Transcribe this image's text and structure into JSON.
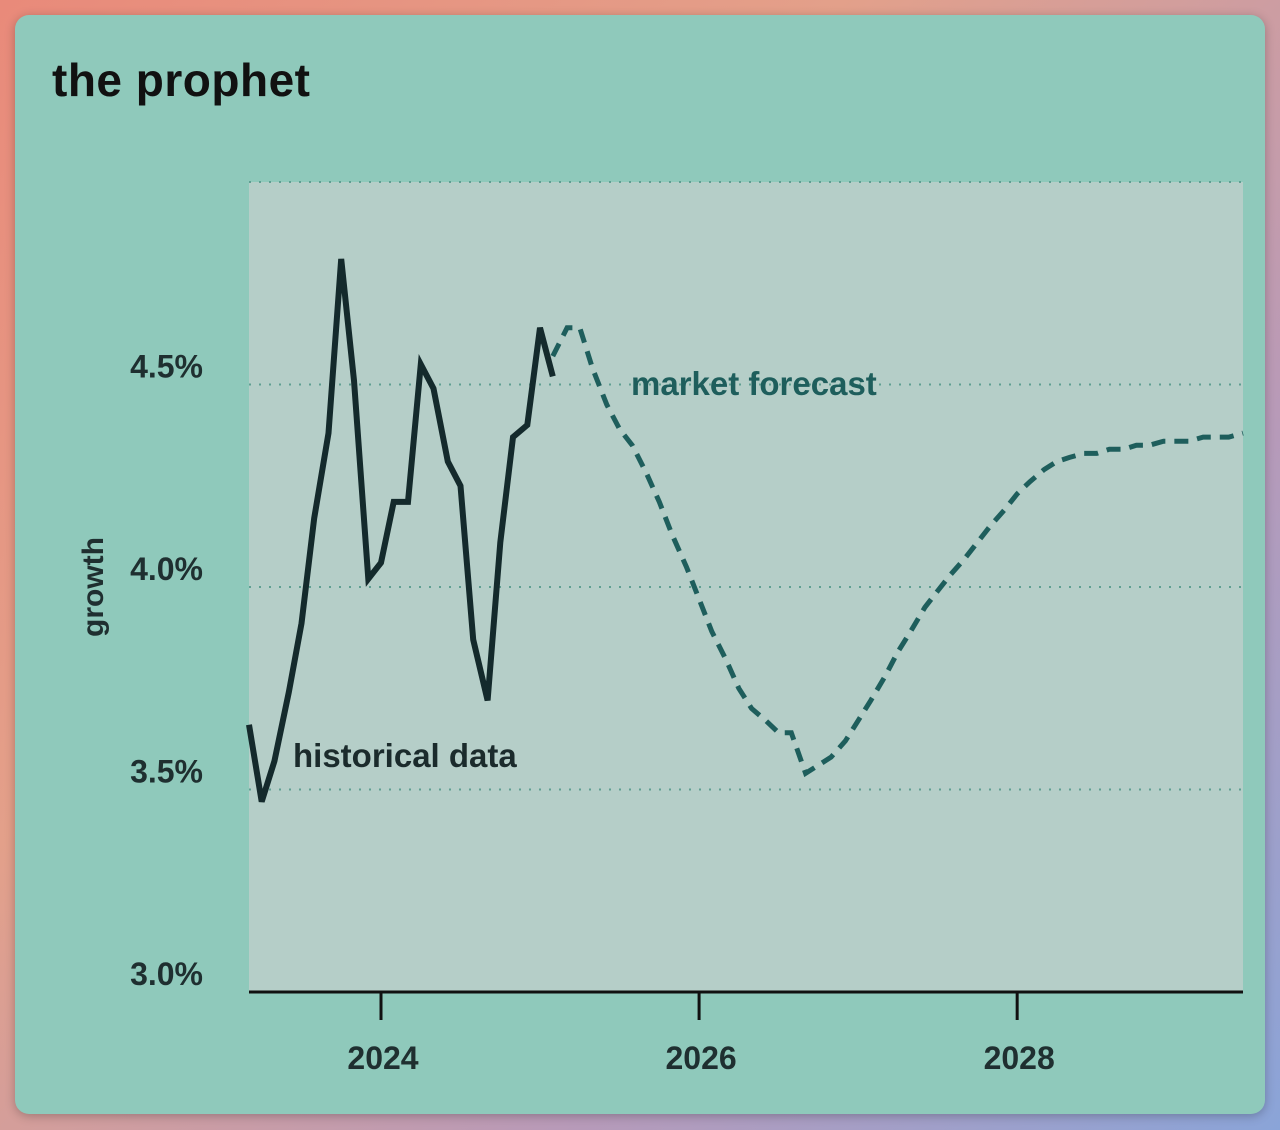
{
  "chart_data": {
    "type": "line",
    "title": "the prophet",
    "xlabel": "",
    "ylabel": "growth",
    "xlim": [
      2023.17,
      2029.42
    ],
    "ylim": [
      3.0,
      5.0
    ],
    "yticks": [
      3.0,
      3.5,
      4.0,
      4.5
    ],
    "ytick_labels": [
      "3.0%",
      "3.5%",
      "4.0%",
      "4.5%"
    ],
    "xticks": [
      2024,
      2026,
      2028
    ],
    "xtick_labels": [
      "2024",
      "2026",
      "2028"
    ],
    "grid": "horizontal dotted",
    "colors": {
      "historical": "#142a2c",
      "forecast": "#1e5e5c",
      "plot_background": "#b5cec8",
      "card_background": "#8fc9bb"
    },
    "series": [
      {
        "name": "historical data",
        "style": "solid",
        "x": [
          2023.17,
          2023.25,
          2023.33,
          2023.42,
          2023.5,
          2023.58,
          2023.67,
          2023.75,
          2023.83,
          2023.92,
          2024.0,
          2024.08,
          2024.17,
          2024.25,
          2024.33,
          2024.42,
          2024.5,
          2024.58,
          2024.67,
          2024.75,
          2024.83,
          2024.92,
          2025.0,
          2025.08
        ],
        "y": [
          3.66,
          3.47,
          3.57,
          3.74,
          3.91,
          4.17,
          4.38,
          4.81,
          4.51,
          4.02,
          4.06,
          4.21,
          4.21,
          4.55,
          4.49,
          4.31,
          4.25,
          3.87,
          3.72,
          4.11,
          4.37,
          4.4,
          4.64,
          4.52
        ]
      },
      {
        "name": "market forecast",
        "style": "dashed",
        "x": [
          2025.08,
          2025.17,
          2025.25,
          2025.33,
          2025.42,
          2025.5,
          2025.58,
          2025.67,
          2025.75,
          2025.83,
          2025.92,
          2026.0,
          2026.08,
          2026.17,
          2026.25,
          2026.33,
          2026.42,
          2026.5,
          2026.58,
          2026.67,
          2026.75,
          2026.83,
          2026.92,
          2027.0,
          2027.08,
          2027.17,
          2027.25,
          2027.33,
          2027.42,
          2027.5,
          2027.58,
          2027.67,
          2027.75,
          2027.83,
          2027.92,
          2028.0,
          2028.08,
          2028.17,
          2028.25,
          2028.33,
          2028.42,
          2028.5,
          2028.58,
          2028.67,
          2028.75,
          2028.83,
          2028.92,
          2029.0,
          2029.08,
          2029.17,
          2029.25,
          2029.33,
          2029.42
        ],
        "y": [
          4.57,
          4.64,
          4.64,
          4.54,
          4.45,
          4.39,
          4.35,
          4.28,
          4.21,
          4.13,
          4.05,
          3.97,
          3.89,
          3.82,
          3.75,
          3.7,
          3.67,
          3.64,
          3.64,
          3.54,
          3.56,
          3.58,
          3.62,
          3.67,
          3.72,
          3.78,
          3.84,
          3.89,
          3.95,
          3.99,
          4.03,
          4.07,
          4.11,
          4.15,
          4.19,
          4.23,
          4.26,
          4.29,
          4.31,
          4.32,
          4.33,
          4.33,
          4.34,
          4.34,
          4.35,
          4.35,
          4.36,
          4.36,
          4.36,
          4.37,
          4.37,
          4.37,
          4.38
        ]
      }
    ],
    "annotations": [
      {
        "text": "historical data",
        "series": "historical data"
      },
      {
        "text": "market forecast",
        "series": "market forecast"
      }
    ]
  }
}
